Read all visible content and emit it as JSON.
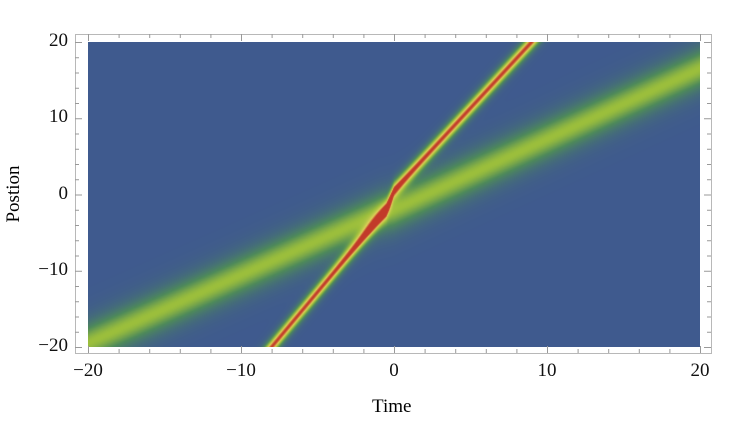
{
  "chart_data": {
    "type": "heatmap",
    "title": "",
    "xlabel": "Time",
    "ylabel": "Postion",
    "xlim": [
      -20,
      20
    ],
    "ylim": [
      -20,
      20
    ],
    "xticks": [
      -20,
      -10,
      0,
      10,
      20
    ],
    "yticks": [
      -20,
      -10,
      0,
      10,
      20
    ],
    "xtick_labels": [
      "−20",
      "−10",
      "0",
      "10",
      "20"
    ],
    "ytick_labels": [
      "−20",
      "−10",
      "0",
      "10",
      "20"
    ],
    "minor_tick_step": 2,
    "grid": false,
    "legend": "none",
    "colormap": [
      "#3f5a8e",
      "#4e8a5a",
      "#9cbf3c",
      "#e0d25a",
      "#c23a2a"
    ],
    "background_color": "#3f5a8e",
    "ridges": [
      {
        "label_visible": false,
        "trajectory": [
          [
            -8,
            -20
          ],
          [
            -0.5,
            -2
          ],
          [
            0,
            0.5
          ],
          [
            9,
            20
          ]
        ],
        "peak_level": 1.0,
        "width": 0.9
      },
      {
        "label_visible": false,
        "trajectory": [
          [
            -20,
            -19.5
          ],
          [
            -1,
            -2.5
          ],
          [
            0,
            -2
          ],
          [
            20,
            16.5
          ]
        ],
        "peak_level": 0.5,
        "width": 2.2
      }
    ]
  }
}
